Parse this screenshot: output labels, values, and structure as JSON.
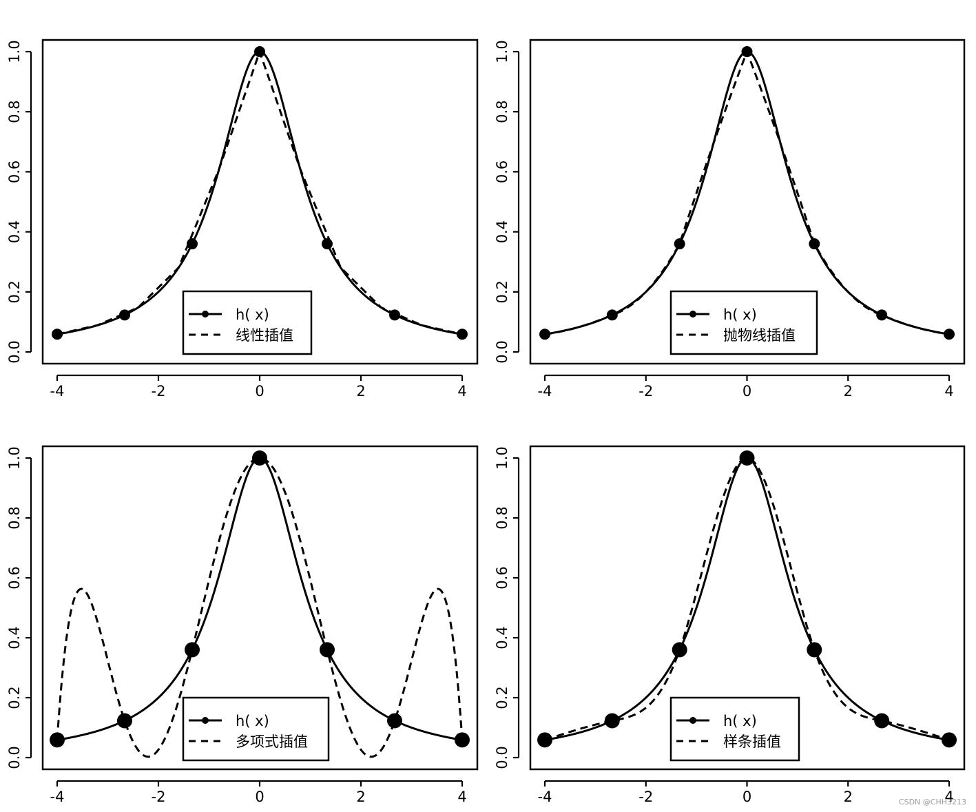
{
  "chart_data": [
    {
      "type": "line",
      "xlim": [
        -4,
        4
      ],
      "ylim": [
        0,
        1
      ],
      "x_ticks": [
        "-4",
        "-2",
        "0",
        "2",
        "4"
      ],
      "y_ticks": [
        "0.0",
        "0.2",
        "0.4",
        "0.6",
        "0.8",
        "1.0"
      ],
      "grid": false,
      "legend_position": "bottom-center",
      "series": [
        {
          "name": "h( x)",
          "style": "solid",
          "function": "1/(1+x^2)"
        },
        {
          "name": "线性插值",
          "style": "dashed",
          "method": "linear"
        }
      ],
      "nodes": {
        "x": [
          -4,
          -2.667,
          -1.333,
          0,
          1.333,
          2.667,
          4
        ],
        "y": [
          0.059,
          0.123,
          0.36,
          1.0,
          0.36,
          0.123,
          0.059
        ]
      }
    },
    {
      "type": "line",
      "xlim": [
        -4,
        4
      ],
      "ylim": [
        0,
        1
      ],
      "x_ticks": [
        "-4",
        "-2",
        "0",
        "2",
        "4"
      ],
      "y_ticks": [
        "0.0",
        "0.2",
        "0.4",
        "0.6",
        "0.8",
        "1.0"
      ],
      "grid": false,
      "legend_position": "bottom-center",
      "series": [
        {
          "name": "h( x)",
          "style": "solid",
          "function": "1/(1+x^2)"
        },
        {
          "name": "抛物线插值",
          "style": "dashed",
          "method": "piecewise quadratic"
        }
      ],
      "nodes": {
        "x": [
          -4,
          -2.667,
          -1.333,
          0,
          1.333,
          2.667,
          4
        ],
        "y": [
          0.059,
          0.123,
          0.36,
          1.0,
          0.36,
          0.123,
          0.059
        ]
      }
    },
    {
      "type": "line",
      "xlim": [
        -4,
        4
      ],
      "ylim": [
        0,
        1
      ],
      "x_ticks": [
        "-4",
        "-2",
        "0",
        "2",
        "4"
      ],
      "y_ticks": [
        "0.0",
        "0.2",
        "0.4",
        "0.6",
        "0.8",
        "1.0"
      ],
      "grid": false,
      "legend_position": "bottom-center",
      "series": [
        {
          "name": "h( x)",
          "style": "solid",
          "function": "1/(1+x^2)"
        },
        {
          "name": "多项式插值",
          "style": "dashed",
          "method": "Lagrange polynomial"
        }
      ],
      "nodes": {
        "x": [
          -4,
          -2.667,
          -1.333,
          0,
          1.333,
          2.667,
          4
        ],
        "y": [
          0.059,
          0.123,
          0.36,
          1.0,
          0.36,
          0.123,
          0.059
        ]
      }
    },
    {
      "type": "line",
      "xlim": [
        -4,
        4
      ],
      "ylim": [
        0,
        1
      ],
      "x_ticks": [
        "-4",
        "-2",
        "0",
        "2",
        "4"
      ],
      "y_ticks": [
        "0.0",
        "0.2",
        "0.4",
        "0.6",
        "0.8",
        "1.0"
      ],
      "grid": false,
      "legend_position": "bottom-center",
      "series": [
        {
          "name": "h( x)",
          "style": "solid",
          "function": "1/(1+x^2)"
        },
        {
          "name": "样条插值",
          "style": "dashed",
          "method": "natural cubic spline"
        }
      ],
      "nodes": {
        "x": [
          -4,
          -2.667,
          -1.333,
          0,
          1.333,
          2.667,
          4
        ],
        "y": [
          0.059,
          0.123,
          0.36,
          1.0,
          0.36,
          0.123,
          0.059
        ]
      }
    }
  ],
  "watermark": "CSDN @CHH3213"
}
